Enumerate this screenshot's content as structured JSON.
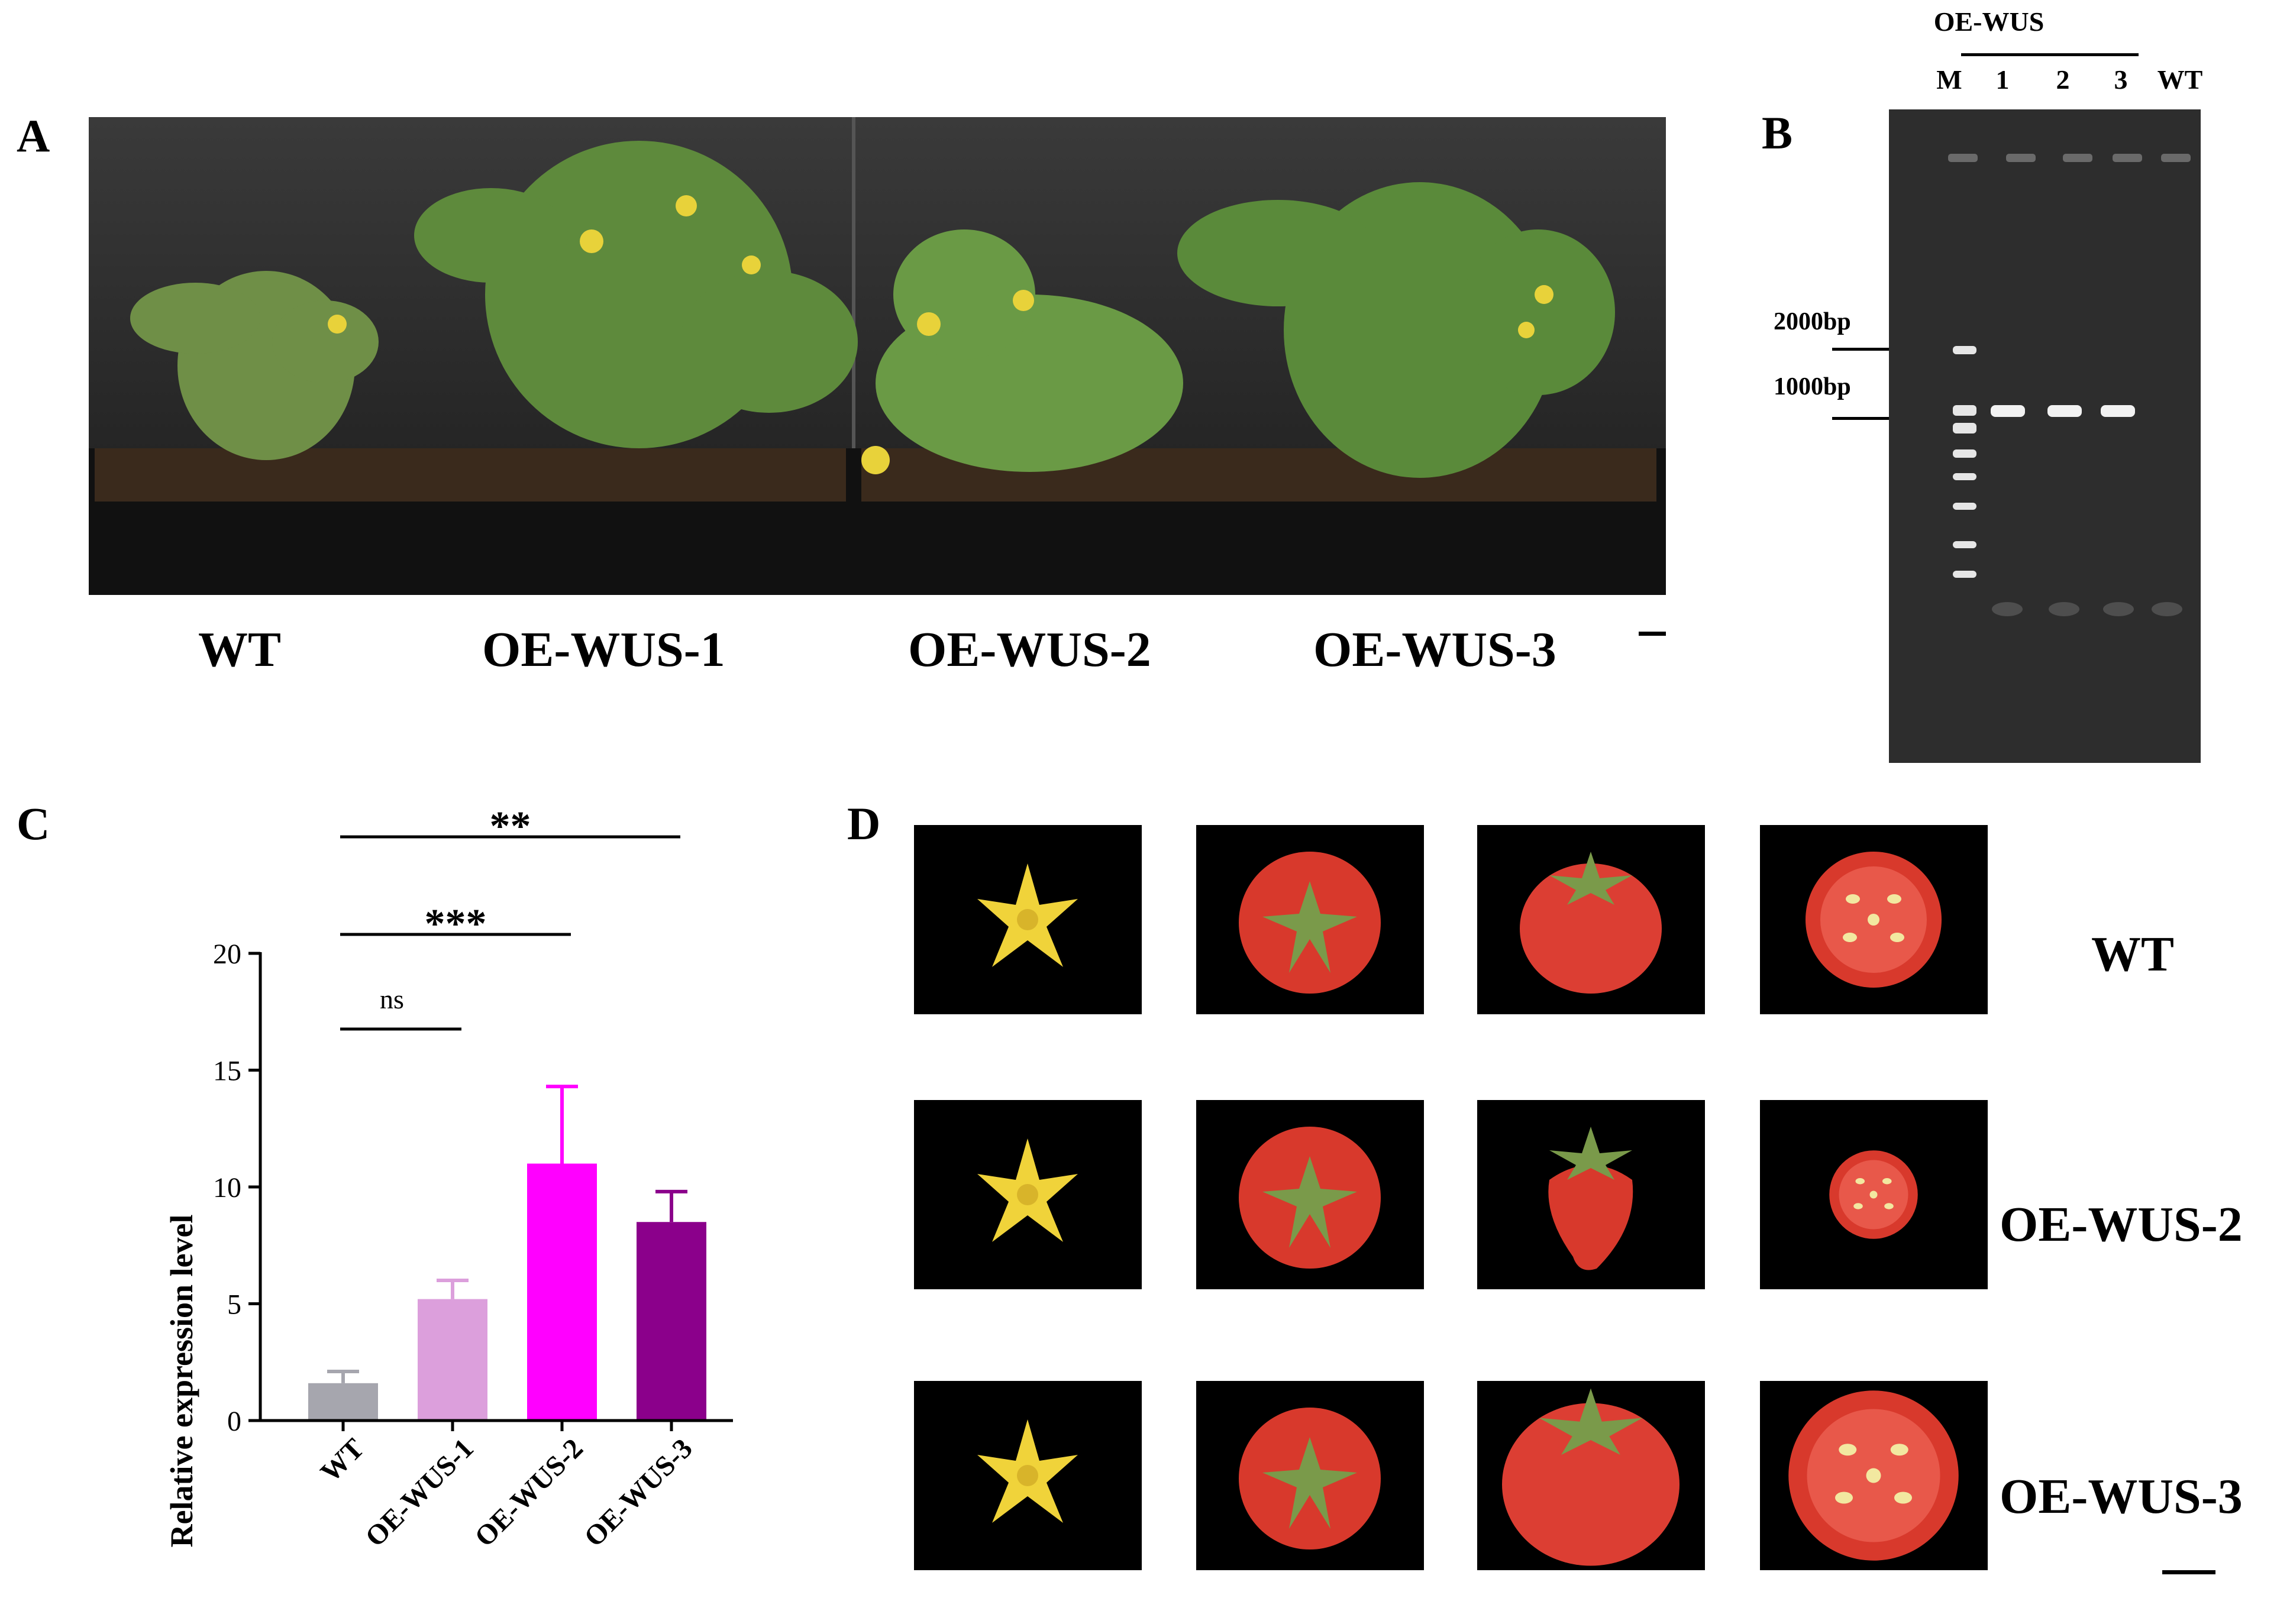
{
  "panels": {
    "a": "A",
    "b": "B",
    "c": "C",
    "d": "D"
  },
  "panel_a": {
    "labels": [
      "WT",
      "OE-WUS-1",
      "OE-WUS-2",
      "OE-WUS-3"
    ]
  },
  "panel_b": {
    "group_label": "OE-WUS",
    "lanes": [
      "M",
      "1",
      "2",
      "3",
      "WT"
    ],
    "markers": [
      "2000bp",
      "1000bp"
    ]
  },
  "panel_d": {
    "rows": [
      "WT",
      "OE-WUS-2",
      "OE-WUS-3"
    ]
  },
  "chart_data": {
    "type": "bar",
    "categories": [
      "WT",
      "OE-WUS-1",
      "OE-WUS-2",
      "OE-WUS-3"
    ],
    "values": [
      1.6,
      5.2,
      11.0,
      8.5
    ],
    "errors": [
      0.5,
      0.8,
      3.3,
      1.3
    ],
    "colors": [
      "#a6a6ae",
      "#dc9fdc",
      "#ff00ff",
      "#8b008b"
    ],
    "ylabel": "Relative expression level",
    "xlabel": "",
    "ylim": [
      0,
      20
    ],
    "yticks": [
      0,
      5,
      10,
      15,
      20
    ],
    "significance": [
      {
        "from": 0,
        "to": 1,
        "label": "ns"
      },
      {
        "from": 0,
        "to": 2,
        "label": "***"
      },
      {
        "from": 0,
        "to": 3,
        "label": "**"
      }
    ]
  }
}
